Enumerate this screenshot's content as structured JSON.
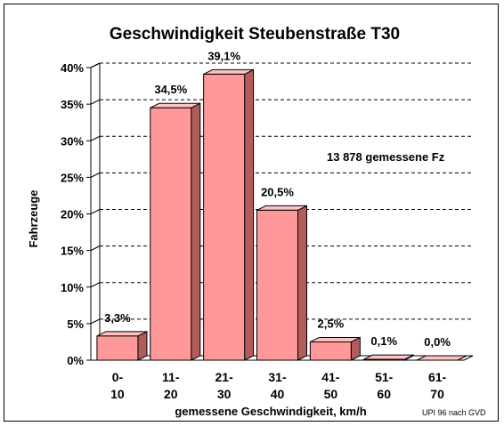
{
  "chart_data": {
    "type": "bar",
    "title": "Geschwindigkeit Steubenstraße T30",
    "xlabel": "gemessene Geschwindigkeit, km/h",
    "ylabel": "Fahrzeuge",
    "categories": [
      [
        "0-",
        "10"
      ],
      [
        "11-",
        "20"
      ],
      [
        "21-",
        "30"
      ],
      [
        "31-",
        "40"
      ],
      [
        "41-",
        "50"
      ],
      [
        "51-",
        "60"
      ],
      [
        "61-",
        "70"
      ]
    ],
    "values": [
      3.3,
      34.5,
      39.1,
      20.5,
      2.5,
      0.1,
      0.0
    ],
    "value_labels": [
      "3,3%",
      "34,5%",
      "39,1%",
      "20,5%",
      "2,5%",
      "0,1%",
      "0,0%"
    ],
    "ylim": [
      0,
      40
    ],
    "yticks": [
      0,
      5,
      10,
      15,
      20,
      25,
      30,
      35,
      40
    ],
    "ytick_labels": [
      "0%",
      "5%",
      "10%",
      "15%",
      "20%",
      "25%",
      "30%",
      "35%",
      "40%"
    ],
    "grid": "horizontal dashed",
    "annotation": "13 878 gemessene Fz",
    "source_note": "UPI 96 nach GVD",
    "colors": {
      "bar_front": "#ff9999",
      "bar_top": "#ffc2c2",
      "bar_side": "#b35c5c",
      "outline": "#000000"
    }
  }
}
